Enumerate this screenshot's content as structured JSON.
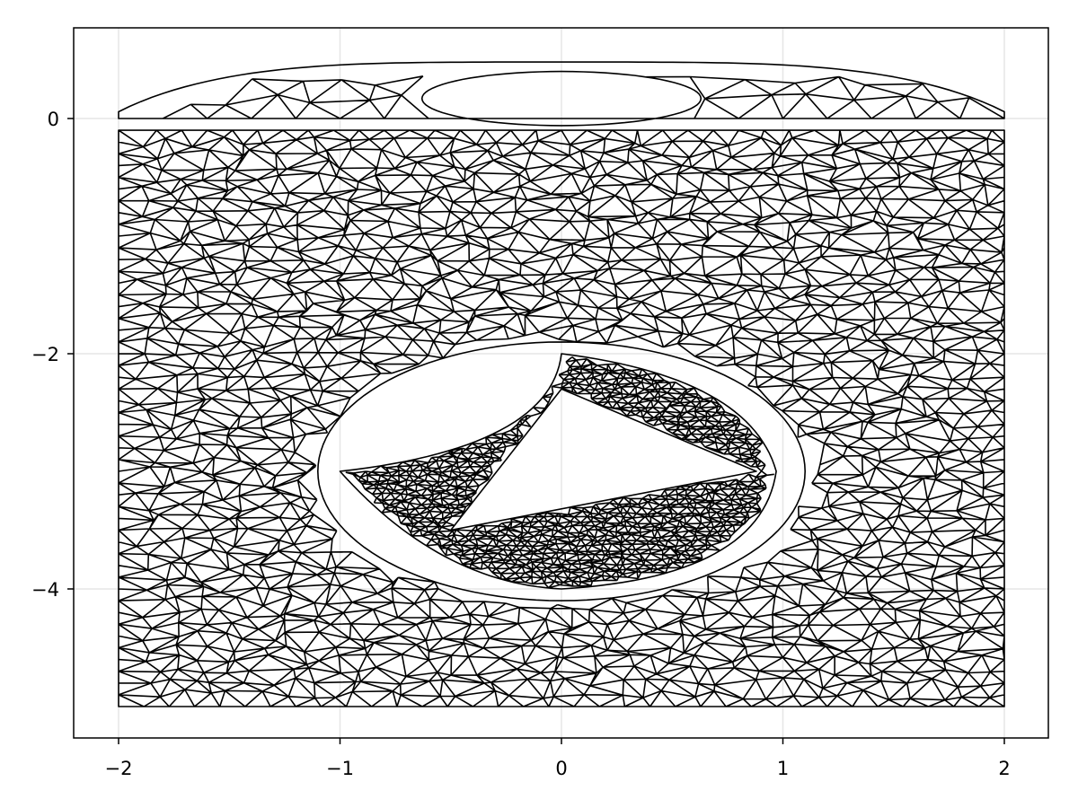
{
  "chart_data": {
    "type": "mesh",
    "title": "",
    "xlabel": "",
    "ylabel": "",
    "xlim": [
      -2.2,
      2.2
    ],
    "ylim": [
      -5.35,
      0.8
    ],
    "x_ticks": [
      {
        "value": -2,
        "label": "−2"
      },
      {
        "value": -1,
        "label": "−1"
      },
      {
        "value": 0,
        "label": "0"
      },
      {
        "value": 1,
        "label": "1"
      },
      {
        "value": 2,
        "label": "2"
      }
    ],
    "y_ticks": [
      {
        "value": 0,
        "label": "0"
      },
      {
        "value": -2,
        "label": "−2"
      },
      {
        "value": -4,
        "label": "−4"
      }
    ],
    "grid": true,
    "regions": [
      {
        "kind": "cap",
        "description_values": {
          "x_range": [
            -2,
            2
          ],
          "y_base": 0,
          "y_top": 0.48,
          "hole_center": [
            0,
            0.17
          ],
          "hole_radii": [
            0.63,
            0.23
          ]
        },
        "mesh_density": "coarse"
      },
      {
        "kind": "rectangle-with-elliptic-hole",
        "x_range": [
          -2,
          2
        ],
        "y_range": [
          -5,
          -0.1
        ],
        "hole_center": [
          0,
          -3
        ],
        "hole_radii": [
          1.1,
          1.1
        ],
        "mesh_density": "medium"
      },
      {
        "kind": "curved-quad-with-triangular-hole",
        "corners": [
          [
            0,
            -2
          ],
          [
            0.97,
            -3
          ],
          [
            0,
            -4
          ],
          [
            -1,
            -3
          ]
        ],
        "hole": [
          [
            0,
            -2.3
          ],
          [
            0.88,
            -3
          ],
          [
            -0.5,
            -3.5
          ]
        ],
        "mesh_density": "fine"
      }
    ]
  }
}
